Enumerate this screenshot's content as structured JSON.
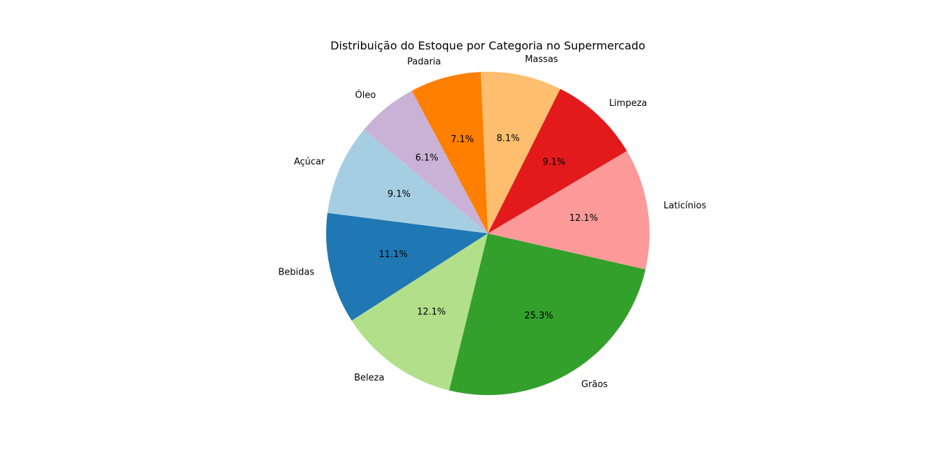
{
  "chart_data": {
    "type": "pie",
    "title": "Distribuição do Estoque por Categoria no Supermercado",
    "autopct_format": "%.1f%%",
    "start_angle_deg": 140,
    "direction": "counterclockwise",
    "slices": [
      {
        "label": "Açúcar",
        "value": 9.1,
        "color": "#a6cee3"
      },
      {
        "label": "Bebidas",
        "value": 11.1,
        "color": "#1f78b4"
      },
      {
        "label": "Beleza",
        "value": 12.1,
        "color": "#b2df8a"
      },
      {
        "label": "Grãos",
        "value": 25.3,
        "color": "#33a02c"
      },
      {
        "label": "Laticínios",
        "value": 12.1,
        "color": "#fb9a99"
      },
      {
        "label": "Limpeza",
        "value": 9.1,
        "color": "#e31a1c"
      },
      {
        "label": "Massas",
        "value": 8.1,
        "color": "#fdbf6f"
      },
      {
        "label": "Padaria",
        "value": 7.1,
        "color": "#ff7f00"
      },
      {
        "label": "Óleo",
        "value": 6.1,
        "color": "#cab2d6"
      }
    ]
  }
}
